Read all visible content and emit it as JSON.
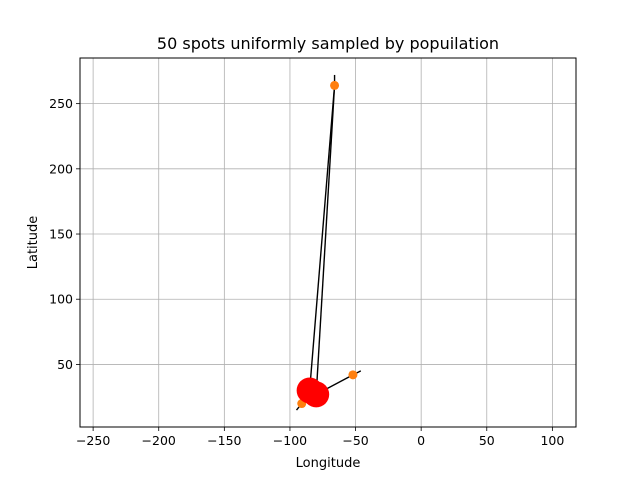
{
  "chart_data": {
    "type": "scatter",
    "title": "50 spots uniformly sampled by popuilation",
    "xlabel": "Longitude",
    "ylabel": "Latitude",
    "xlim": [
      -260,
      118
    ],
    "ylim": [
      2,
      285
    ],
    "xticks": [
      -250,
      -200,
      -150,
      -100,
      -50,
      0,
      50,
      100
    ],
    "yticks": [
      50,
      100,
      150,
      200,
      250
    ],
    "grid": true,
    "colors": {
      "large_point": "#ff0000",
      "small_point": "#ff7f0e",
      "line": "#000000",
      "grid": "#b0b0b0"
    },
    "points": [
      {
        "x": -85,
        "y": 30,
        "size": "large"
      },
      {
        "x": -80,
        "y": 27,
        "size": "large"
      },
      {
        "x": -66,
        "y": 264,
        "size": "small"
      },
      {
        "x": -52,
        "y": 42,
        "size": "small"
      },
      {
        "x": -91,
        "y": 20,
        "size": "small"
      }
    ],
    "segments": [
      {
        "from": [
          -85,
          30
        ],
        "to": [
          -66,
          264
        ]
      },
      {
        "from": [
          -80,
          27
        ],
        "to": [
          -66,
          264
        ]
      },
      {
        "from": [
          -80,
          27
        ],
        "to": [
          -52,
          42
        ]
      },
      {
        "from": [
          -85,
          30
        ],
        "to": [
          -91,
          20
        ]
      },
      {
        "from": [
          -66,
          264
        ],
        "to": [
          -66,
          272
        ]
      },
      {
        "from": [
          -52,
          42
        ],
        "to": [
          -46,
          45
        ]
      },
      {
        "from": [
          -91,
          20
        ],
        "to": [
          -95,
          15
        ]
      }
    ]
  }
}
